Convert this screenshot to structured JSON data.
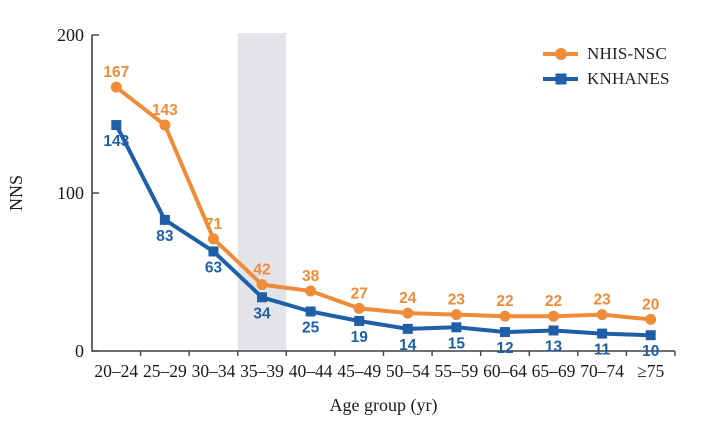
{
  "chart_data": {
    "type": "line",
    "title": "",
    "xlabel": "Age group (yr)",
    "ylabel": "NNS",
    "ylim": [
      0,
      200
    ],
    "yticks": [
      0,
      100,
      200
    ],
    "grid": false,
    "legend_position": "top-right",
    "background_color": "#ffffff",
    "axis_color": "#404040",
    "highlight_band": {
      "category": "35–39",
      "color": "#e2e4e8"
    },
    "categories": [
      "20–24",
      "25–29",
      "30–34",
      "35–39",
      "40–44",
      "45–49",
      "50–54",
      "55–59",
      "60–64",
      "65–69",
      "70–74",
      "≥75"
    ],
    "series": [
      {
        "name": "NHIS-NSC",
        "color": "#ee8c3a",
        "marker": "circle",
        "label_position": "above",
        "values": [
          167,
          143,
          71,
          42,
          38,
          27,
          24,
          23,
          22,
          22,
          23,
          20
        ]
      },
      {
        "name": "KNHANES",
        "color": "#1f5fa8",
        "marker": "square",
        "label_position": "below",
        "values": [
          143,
          83,
          63,
          34,
          25,
          19,
          14,
          15,
          12,
          13,
          11,
          10
        ]
      }
    ]
  }
}
